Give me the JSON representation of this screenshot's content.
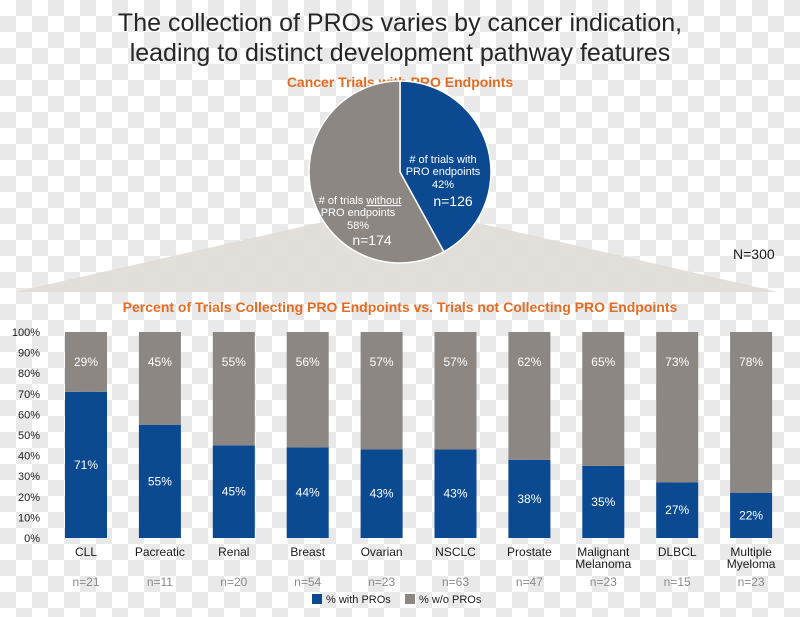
{
  "title_line1": "The collection of PROs varies by cancer indication,",
  "title_line2": "leading to distinct development pathway features",
  "pie": {
    "title": "Cancer Trials with PRO Endpoints",
    "total_label": "N=300",
    "slices": [
      {
        "label_lines": [
          "# of trials with",
          "PRO endpoints"
        ],
        "pct_label": "42%",
        "n_label": "n=126",
        "value": 126,
        "color": "#0b4990"
      },
      {
        "label_lines": [
          "# of trials ",
          "without",
          "PRO endpoints"
        ],
        "pct_label": "58%",
        "n_label": "n=174",
        "value": 174,
        "color": "#8d8783"
      }
    ]
  },
  "chart_data": {
    "type": "bar",
    "stacked": true,
    "title": "Percent of Trials Collecting PRO Endpoints vs. Trials not Collecting PRO Endpoints",
    "categories": [
      "CLL",
      "Pacreatic",
      "Renal",
      "Breast",
      "Ovarian",
      "NSCLC",
      "Prostate",
      "Malignant Melanoma",
      "DLBCL",
      "Multiple Myeloma"
    ],
    "category_lines": [
      [
        "CLL"
      ],
      [
        "Pacreatic"
      ],
      [
        "Renal"
      ],
      [
        "Breast"
      ],
      [
        "Ovarian"
      ],
      [
        "NSCLC"
      ],
      [
        "Prostate"
      ],
      [
        "Malignant",
        "Melanoma"
      ],
      [
        "DLBCL"
      ],
      [
        "Multiple",
        "Myeloma"
      ]
    ],
    "n_labels": [
      "n=21",
      "n=11",
      "n=20",
      "n=54",
      "n=23",
      "n=63",
      "n=47",
      "n=23",
      "n=15",
      "n=23"
    ],
    "series": [
      {
        "name": "% with PROs",
        "color": "#0b4990",
        "values": [
          71,
          55,
          45,
          44,
          43,
          43,
          38,
          35,
          27,
          22
        ]
      },
      {
        "name": "% w/o PROs",
        "color": "#8d8783",
        "values": [
          29,
          45,
          55,
          56,
          57,
          57,
          62,
          65,
          73,
          78
        ]
      }
    ],
    "ylim": [
      0,
      100
    ],
    "yticks": [
      "0%",
      "10%",
      "20%",
      "30%",
      "40%",
      "50%",
      "60%",
      "70%",
      "80%",
      "90%",
      "100%"
    ],
    "legend_position": "bottom"
  }
}
